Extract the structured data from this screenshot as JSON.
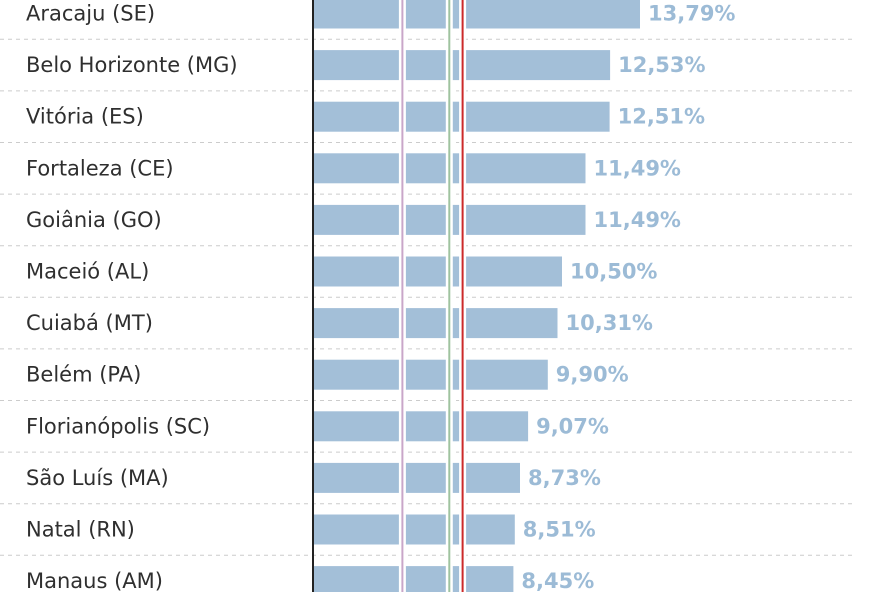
{
  "chart_data": {
    "type": "bar",
    "orientation": "horizontal",
    "categories": [
      "Aracaju (SE)",
      "Belo Horizonte (MG)",
      "Vitória (ES)",
      "Fortaleza (CE)",
      "Goiânia (GO)",
      "Maceió (AL)",
      "Cuiabá (MT)",
      "Belém (PA)",
      "Florianópolis (SC)",
      "São Luís (MA)",
      "Natal (RN)",
      "Manaus (AM)"
    ],
    "values": [
      13.79,
      12.53,
      12.51,
      11.49,
      11.49,
      10.5,
      10.31,
      9.9,
      9.07,
      8.73,
      8.51,
      8.45
    ],
    "value_labels": [
      "13,79%",
      "12,53%",
      "12,51%",
      "11,49%",
      "11,49%",
      "10,50%",
      "10,31%",
      "9,90%",
      "9,07%",
      "8,73%",
      "8,51%",
      "8,45%"
    ],
    "xlim": [
      0,
      13.79
    ],
    "reference_lines": [
      {
        "value": 3.77,
        "color": "#c9a6c9"
      },
      {
        "value": 5.75,
        "color": "#9fc39f"
      },
      {
        "value": 6.31,
        "color": "#cc2a2a"
      }
    ],
    "colors": {
      "bar": "#a3bfd8",
      "value_text": "#9cbbd6",
      "label_text": "#2f2f2f",
      "axis": "#222222",
      "divider": "#cccccc"
    },
    "grid": false
  }
}
